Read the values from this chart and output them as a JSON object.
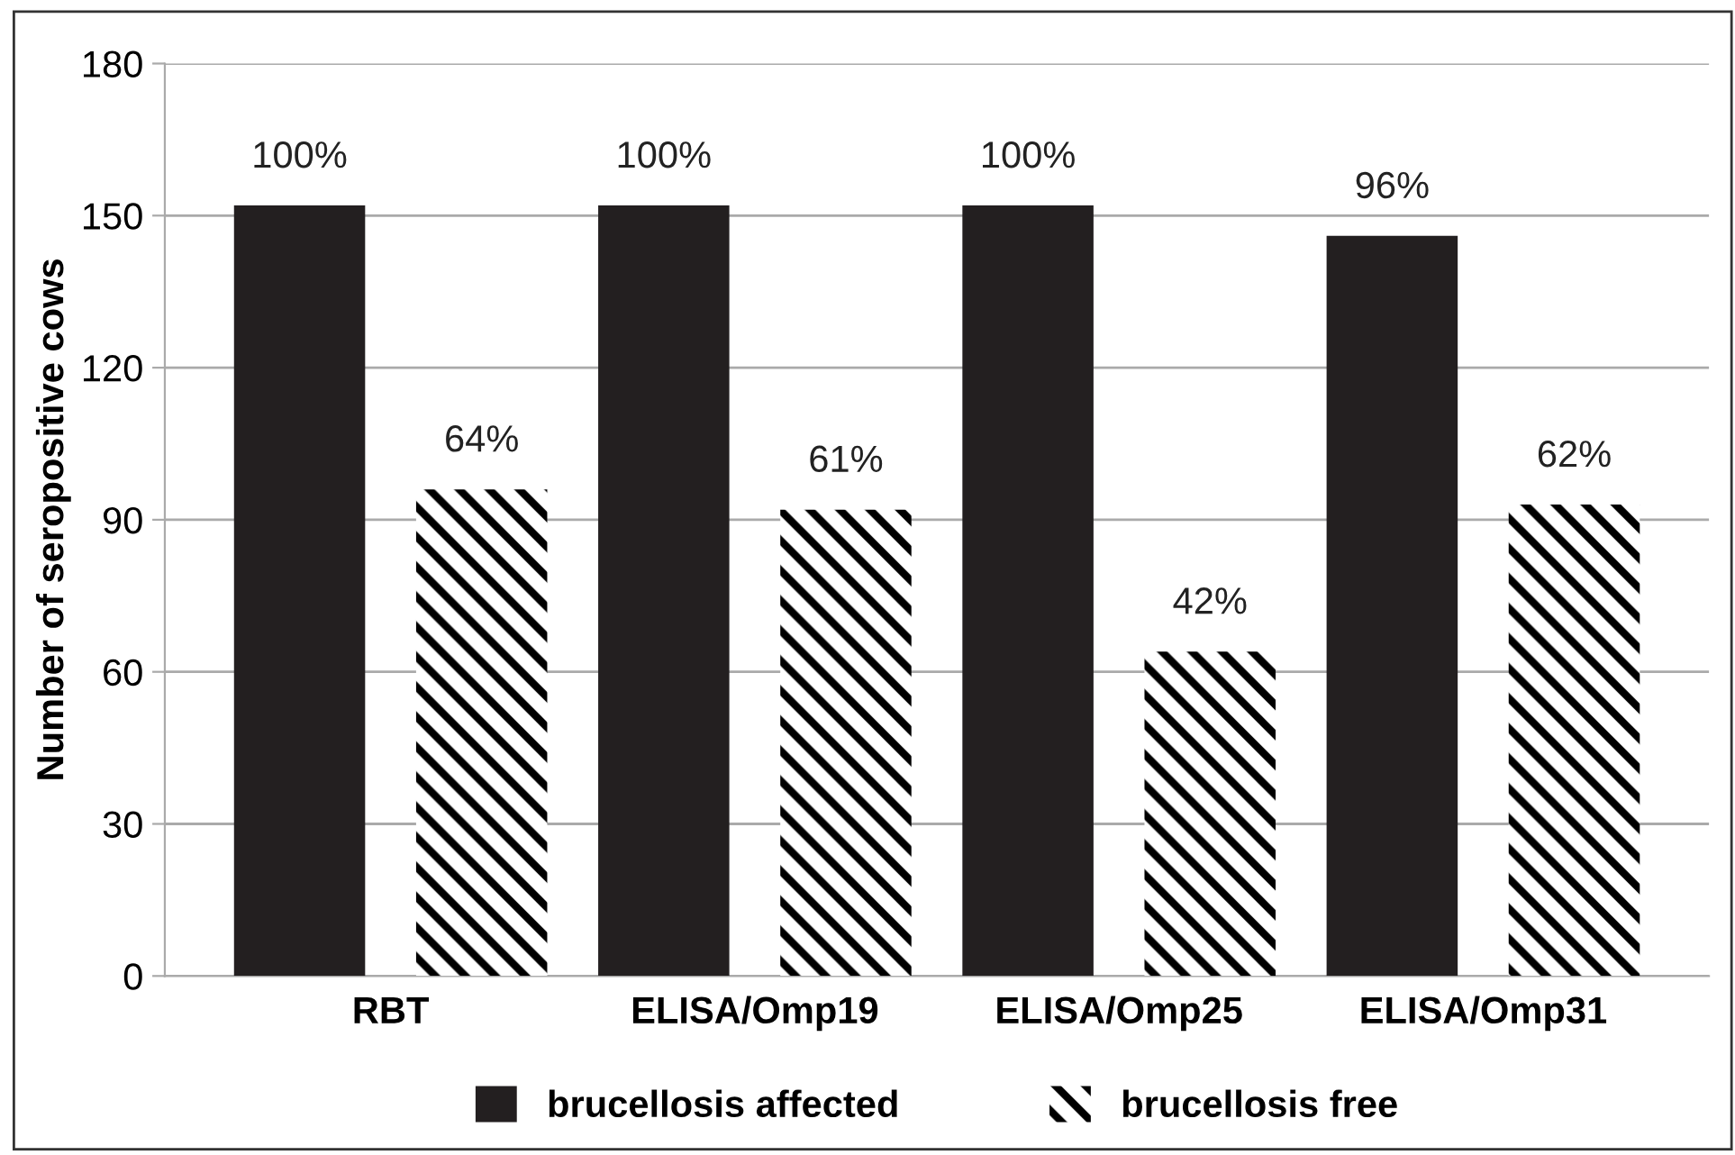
{
  "chart_data": {
    "type": "bar",
    "ylabel": "Number of seropositive cows",
    "categories": [
      "RBT",
      "ELISA/Omp19",
      "ELISA/Omp25",
      "ELISA/Omp31"
    ],
    "series": [
      {
        "name": "brucellosis affected",
        "color": "#231f20",
        "values": [
          152,
          152,
          152,
          146
        ]
      },
      {
        "name": "brucellosis free",
        "color": "#000000",
        "values": [
          96,
          92,
          64,
          93
        ]
      }
    ],
    "annotations": [
      "100%",
      "100%",
      "100%",
      "96%",
      "64%",
      "61%",
      "42%",
      "62%"
    ],
    "ylim": [
      0,
      180
    ],
    "yticks": [
      0,
      30,
      60,
      90,
      120,
      150,
      180
    ],
    "grid": "y",
    "legend": "bottom"
  }
}
